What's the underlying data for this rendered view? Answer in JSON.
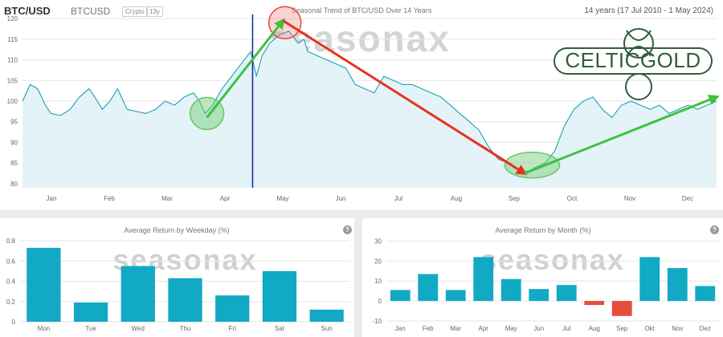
{
  "header": {
    "symbol": "BTC/USD",
    "ticker": "BTCUSD",
    "badges": [
      "Crypto",
      "13y"
    ],
    "title": "Seasonal Trend of BTC/USD Over 14 Years",
    "range": "14 years (17 Jul 2010 - 1 May 2024)"
  },
  "watermark": "seasonax",
  "logo": {
    "text": "CELTICGOLD"
  },
  "colors": {
    "bar": "#12a9c5",
    "negative": "#e64c3c",
    "line": "#1aa0b8",
    "arrow_up": "#3ec23e",
    "arrow_down": "#e8321e",
    "marker": "#1a2bb5"
  },
  "chart_data": [
    {
      "type": "line",
      "title": "Seasonal Trend of BTC/USD Over 14 Years",
      "xlabel": "",
      "ylabel": "",
      "categories": [
        "Jan",
        "Feb",
        "Mar",
        "Apr",
        "May",
        "Jun",
        "Jul",
        "Aug",
        "Sep",
        "Oct",
        "Nov",
        "Dec"
      ],
      "yticks": [
        80,
        85,
        90,
        95,
        100,
        105,
        110,
        115,
        120
      ],
      "ylim": [
        79,
        121
      ],
      "xlim": [
        0,
        365
      ],
      "grid": true,
      "vline_day": 121,
      "series": [
        {
          "x": [
            0,
            4,
            8,
            12,
            15,
            20,
            25,
            30,
            35,
            38,
            42,
            46,
            50,
            55,
            60,
            65,
            70,
            75,
            80,
            85,
            90,
            93,
            96,
            100,
            105,
            110,
            115,
            120,
            123,
            126,
            130,
            135,
            140,
            145,
            148,
            150,
            155,
            160,
            165,
            170,
            175,
            180,
            185,
            190,
            195,
            200,
            205,
            210,
            215,
            220,
            225,
            230,
            235,
            240,
            245,
            250,
            255,
            258,
            262,
            266,
            270,
            275,
            280,
            285,
            290,
            295,
            300,
            305,
            310,
            315,
            320,
            325,
            330,
            335,
            340,
            345,
            350,
            355,
            360,
            365
          ],
          "y": [
            100,
            104,
            103,
            99,
            97,
            96.5,
            98,
            101,
            103,
            101,
            98,
            100,
            103,
            98,
            97.5,
            97,
            98,
            100,
            99,
            101,
            102,
            100,
            97,
            99,
            103,
            106,
            109,
            112,
            106,
            111,
            114,
            116,
            117,
            114,
            115,
            112,
            111,
            110,
            109,
            108,
            104,
            103,
            102,
            106,
            105,
            104,
            104,
            103,
            102,
            101,
            99,
            97,
            95,
            93,
            89,
            86,
            85,
            84,
            83,
            83,
            84,
            85,
            88,
            94,
            98,
            100,
            101,
            98,
            96,
            99,
            100,
            99,
            98,
            99,
            97,
            98,
            99,
            98,
            99,
            100
          ]
        }
      ],
      "annotations": {
        "arrows": [
          {
            "from": [
              97,
              96
            ],
            "to": [
              137,
              119.5
            ],
            "direction": "up"
          },
          {
            "from": [
              137,
              119.5
            ],
            "to": [
              264,
              82.5
            ],
            "direction": "down"
          },
          {
            "from": [
              264,
              82.5
            ],
            "to": [
              365,
              101
            ],
            "direction": "up"
          }
        ],
        "circles": [
          {
            "day": 97,
            "value": 97,
            "color": "green"
          },
          {
            "day": 138,
            "value": 119,
            "color": "red"
          },
          {
            "day": 268,
            "value": 84.5,
            "color": "green"
          }
        ]
      }
    },
    {
      "type": "bar",
      "title": "Average Return by Weekday (%)",
      "xlabel": "",
      "ylabel": "",
      "categories": [
        "Mon",
        "Tue",
        "Wed",
        "Thu",
        "Fri",
        "Sat",
        "Sun"
      ],
      "values": [
        0.73,
        0.19,
        0.55,
        0.43,
        0.26,
        0.5,
        0.12
      ],
      "yticks": [
        0,
        0.2,
        0.4,
        0.6,
        0.8
      ],
      "ylim": [
        0,
        0.84
      ],
      "grid": true
    },
    {
      "type": "bar",
      "title": "Average Return by Month (%)",
      "xlabel": "",
      "ylabel": "",
      "categories": [
        "Jan",
        "Feb",
        "Mar",
        "Apr",
        "May",
        "Jun",
        "Jul",
        "Aug",
        "Sep",
        "Okt",
        "Nov",
        "Dez"
      ],
      "values": [
        5.5,
        13.5,
        5.5,
        22,
        11,
        6,
        8,
        -2,
        -7.5,
        22,
        16.5,
        7.5
      ],
      "yticks": [
        -10,
        0,
        10,
        20,
        30
      ],
      "ylim": [
        -10,
        31
      ],
      "grid": true
    }
  ]
}
